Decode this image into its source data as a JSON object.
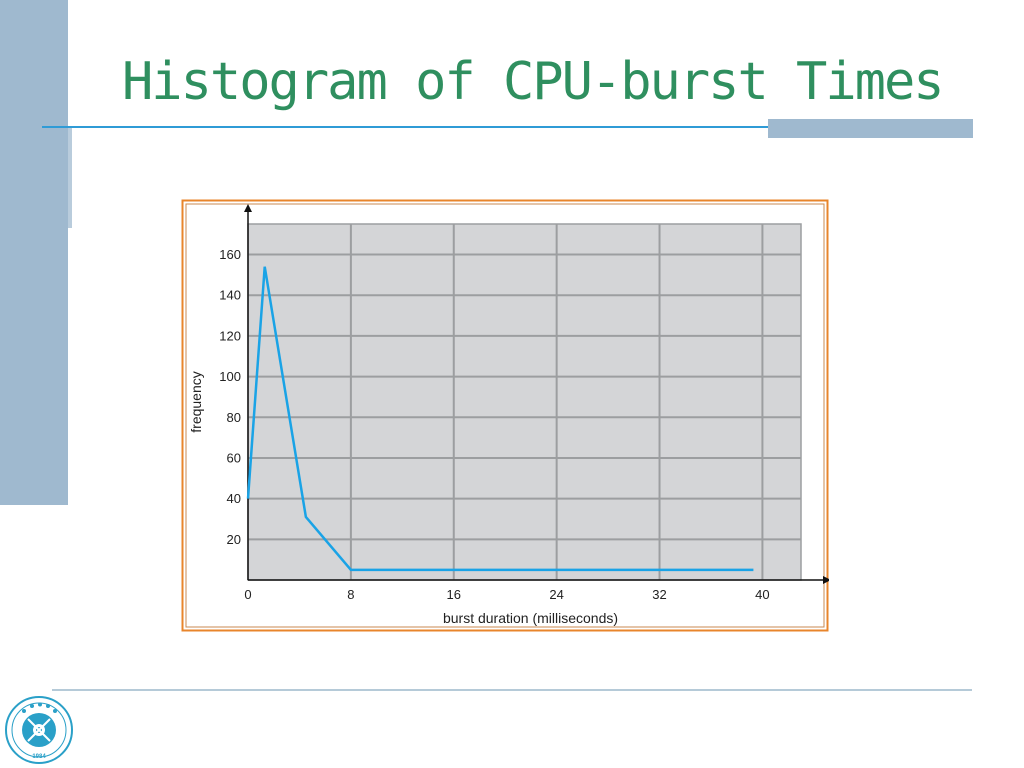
{
  "slide": {
    "title": "Histogram of CPU-burst Times"
  },
  "colors": {
    "title": "#2f8f5f",
    "accent_rule": "#2f9bd6",
    "side_bar": "#9fb9cf",
    "plot_bg": "#d4d5d7",
    "grid": "#9c9ea0",
    "series": "#1aa3e6",
    "frame_outer": "#e8852b",
    "frame_inner": "#c98a50"
  },
  "chart_data": {
    "type": "line",
    "title": "",
    "xlabel": "burst duration (milliseconds)",
    "ylabel": "frequency",
    "xlim": [
      0,
      43
    ],
    "ylim": [
      0,
      175
    ],
    "xticks": [
      0,
      8,
      16,
      24,
      32,
      40
    ],
    "yticks": [
      20,
      40,
      60,
      80,
      100,
      120,
      140,
      160
    ],
    "grid": true,
    "series": [
      {
        "x": [
          0,
          1.3,
          4.5,
          8,
          39.3
        ],
        "y": [
          40,
          154,
          31,
          5,
          5
        ]
      }
    ]
  },
  "logo": {
    "name": "university-seal",
    "year": "1984"
  }
}
